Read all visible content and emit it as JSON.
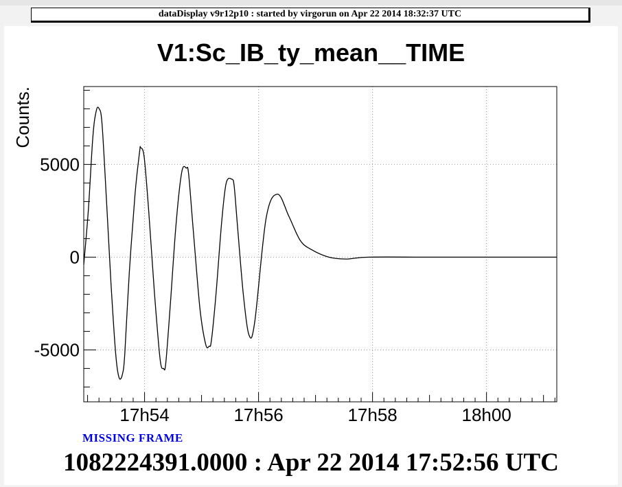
{
  "window": {
    "banner": "dataDisplay v9r12p10 : started by virgorun on Apr 22 2014 18:32:37 UTC"
  },
  "status": {
    "missing_frame": "MISSING FRAME",
    "timestamp": "1082224391.0000 : Apr 22 2014 17:52:56 UTC"
  },
  "chart_data": {
    "type": "line",
    "title": "V1:Sc_IB_ty_mean__TIME",
    "ylabel": "Counts.",
    "xlabel": "",
    "x_unit": "minutes since 17:52:56 UTC",
    "xlim": [
      0,
      8.3
    ],
    "ylim": [
      -7800,
      9200
    ],
    "yticks": [
      {
        "value": -5000,
        "label": "-5000"
      },
      {
        "value": 0,
        "label": "0"
      },
      {
        "value": 5000,
        "label": "5000"
      }
    ],
    "xticks": [
      {
        "value": 1.067,
        "label": "17h54"
      },
      {
        "value": 3.067,
        "label": "17h56"
      },
      {
        "value": 5.067,
        "label": "17h58"
      },
      {
        "value": 7.067,
        "label": "18h00"
      }
    ],
    "grid": true,
    "color": "#000000",
    "series": [
      {
        "name": "",
        "x": [
          0,
          0.08,
          0.16,
          0.22,
          0.27,
          0.32,
          0.4,
          0.48,
          0.56,
          0.62,
          0.68,
          0.72,
          0.8,
          0.9,
          0.98,
          1.0,
          1.06,
          1.14,
          1.24,
          1.34,
          1.4,
          1.44,
          1.52,
          1.62,
          1.72,
          1.8,
          1.84,
          1.92,
          2.04,
          2.14,
          2.2,
          2.24,
          2.32,
          2.42,
          2.5,
          2.6,
          2.64,
          2.7,
          2.8,
          2.9,
          3.0,
          3.2,
          3.4,
          3.6,
          3.8,
          4.0,
          4.3,
          4.6,
          5.0,
          6.0,
          7.0,
          8.3
        ],
        "y": [
          -400,
          2500,
          6500,
          7900,
          8000,
          7200,
          3000,
          -1500,
          -5200,
          -6500,
          -6300,
          -5200,
          -800,
          3400,
          5700,
          5900,
          5400,
          2500,
          -1900,
          -5500,
          -6000,
          -5700,
          -2500,
          1800,
          4600,
          4800,
          4500,
          1500,
          -2800,
          -4700,
          -4800,
          -4500,
          -2000,
          1900,
          4000,
          4200,
          3800,
          1600,
          -2000,
          -4200,
          -3500,
          2100,
          3400,
          2200,
          900,
          400,
          0,
          -100,
          0,
          0,
          0,
          0
        ]
      }
    ]
  }
}
